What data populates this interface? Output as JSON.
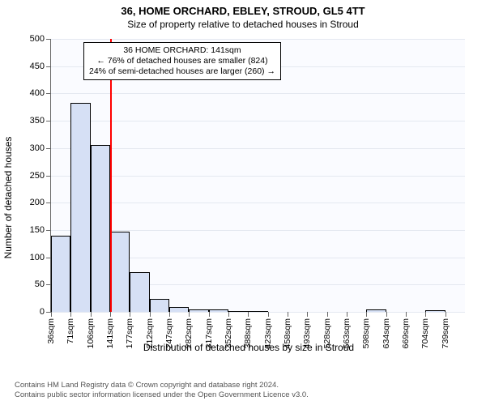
{
  "title": "36, HOME ORCHARD, EBLEY, STROUD, GL5 4TT",
  "subtitle": "Size of property relative to detached houses in Stroud",
  "ylabel": "Number of detached houses",
  "xcaption": "Distribution of detached houses by size in Stroud",
  "footer1": "Contains HM Land Registry data © Crown copyright and database right 2024.",
  "footer2": "Contains public sector information licensed under the Open Government Licence v3.0.",
  "annot": {
    "line1": "36 HOME ORCHARD: 141sqm",
    "line2": "← 76% of detached houses are smaller (824)",
    "line3": "24% of semi-detached houses are larger (260) →"
  },
  "chart": {
    "type": "histogram",
    "background_color": "#fafbff",
    "grid_color": "#e4e8f0",
    "bar_fill": "#d6e0f5",
    "bar_stroke": "#000000",
    "marker_color": "#ff0000",
    "marker_x": 141,
    "ylim": [
      0,
      500
    ],
    "ytick_step": 50,
    "x_start": 36,
    "x_step": 35.15,
    "n_bars": 21,
    "values": [
      140,
      383,
      306,
      147,
      72,
      24,
      9,
      5,
      4,
      2,
      2,
      0,
      0,
      0,
      0,
      0,
      4,
      0,
      0,
      3,
      0
    ],
    "xticks": [
      "36sqm",
      "71sqm",
      "106sqm",
      "141sqm",
      "177sqm",
      "212sqm",
      "247sqm",
      "282sqm",
      "317sqm",
      "352sqm",
      "388sqm",
      "423sqm",
      "458sqm",
      "493sqm",
      "528sqm",
      "563sqm",
      "598sqm",
      "634sqm",
      "669sqm",
      "704sqm",
      "739sqm"
    ],
    "axis_fontsize": 11,
    "label_fontsize": 12
  }
}
